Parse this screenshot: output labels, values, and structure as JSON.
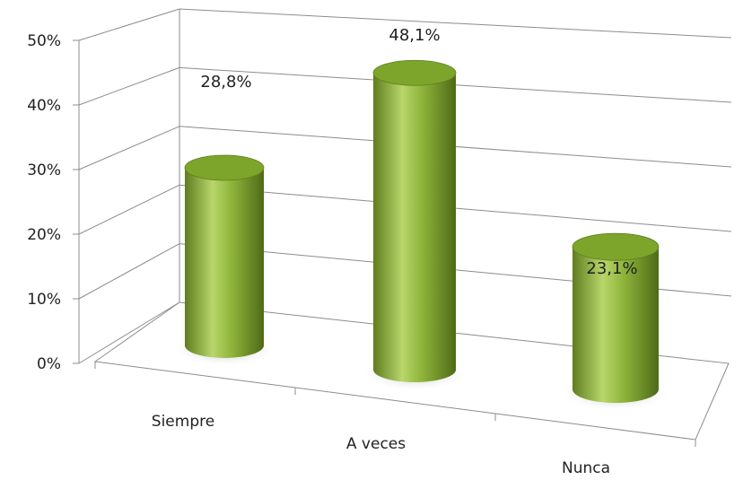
{
  "chart_data": {
    "type": "bar",
    "style": "3d-cylinder",
    "categories": [
      "Siempre",
      "A veces",
      "Nunca"
    ],
    "values": [
      28.8,
      48.1,
      23.1
    ],
    "data_labels": [
      "28,8%",
      "48,1%",
      "23,1%"
    ],
    "yticks": [
      "0%",
      "10%",
      "20%",
      "30%",
      "40%",
      "50%"
    ],
    "ylim": [
      0,
      50
    ],
    "title": "",
    "xlabel": "",
    "ylabel": "",
    "grid": true,
    "legend": "none",
    "colors": {
      "bar": "#8db33a",
      "bar_dark": "#5f7d1f",
      "bar_light": "#b8d66a",
      "top": "#7da52c",
      "grid": "#8c8c8c"
    }
  }
}
